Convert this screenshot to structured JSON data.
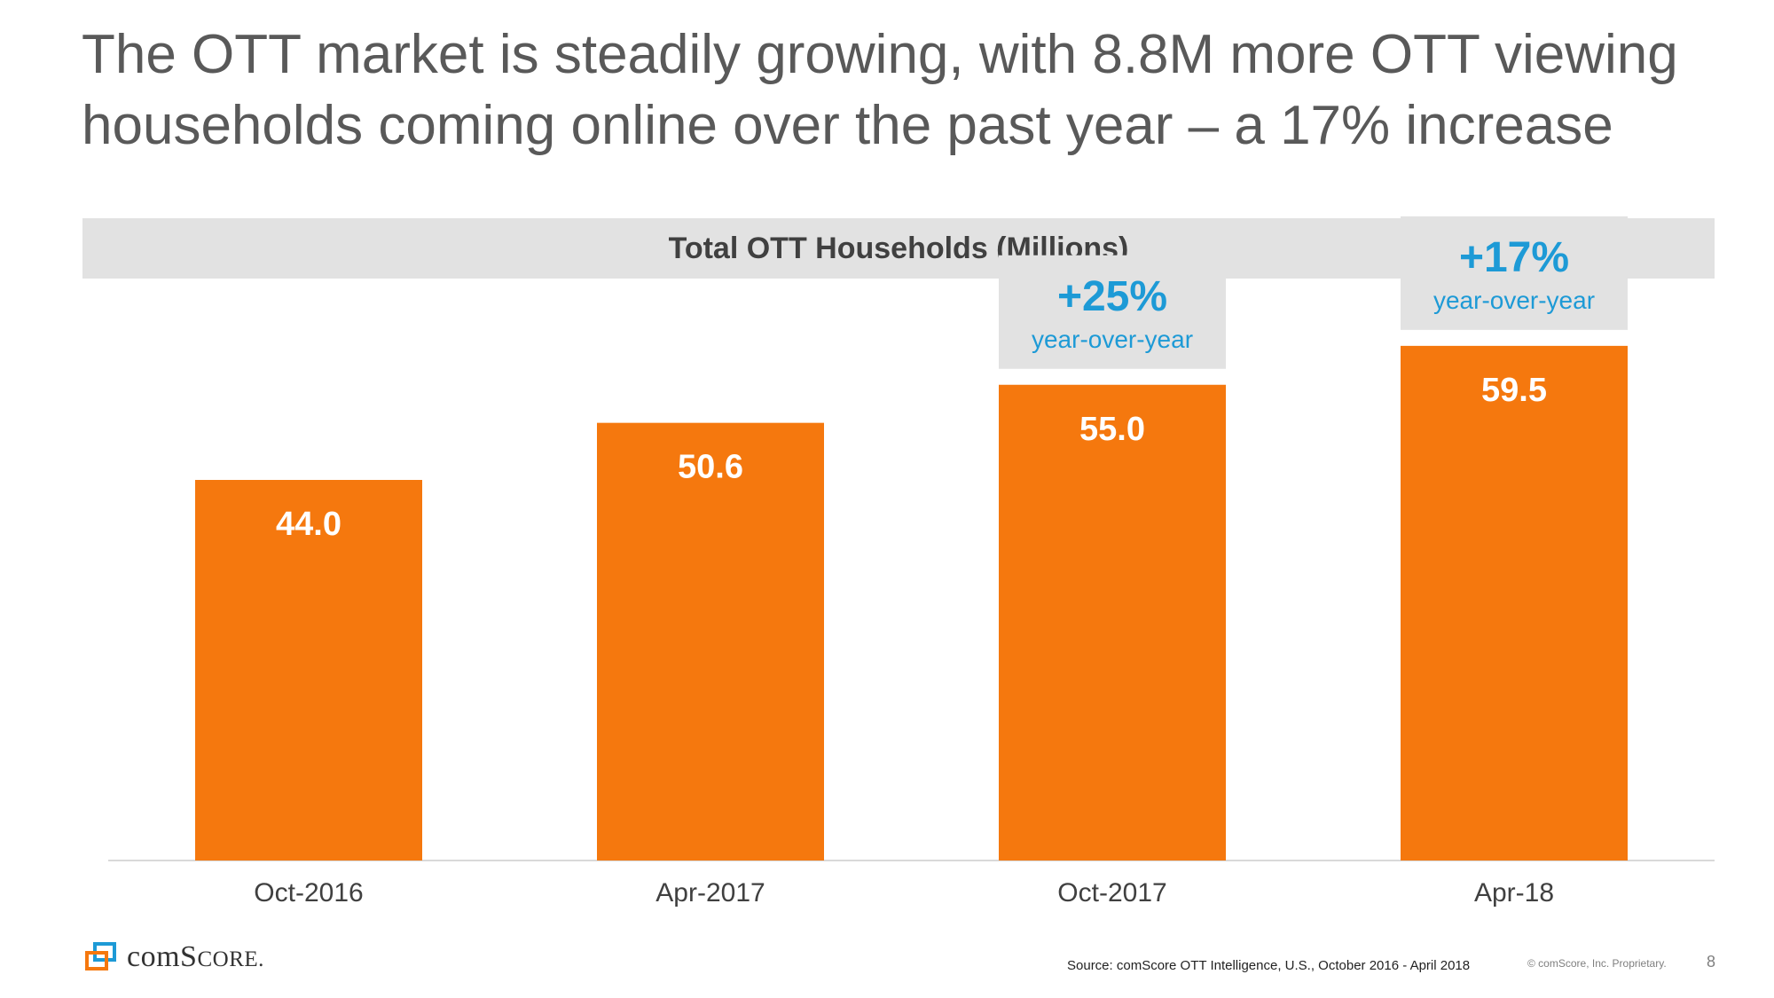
{
  "slide": {
    "title": "The OTT market is steadily growing, with 8.8M more OTT viewing households coming online over the past year – a 17% increase"
  },
  "chart_data": {
    "type": "bar",
    "title": "Total OTT Households (Millions)",
    "categories": [
      "Oct-2016",
      "Apr-2017",
      "Oct-2017",
      "Apr-18"
    ],
    "values": [
      44.0,
      50.6,
      55.0,
      59.5
    ],
    "value_labels": [
      "44.0",
      "50.6",
      "55.0",
      "59.5"
    ],
    "ylim": [
      0,
      80
    ],
    "xlabel": "",
    "ylabel": "",
    "grid": false,
    "legend": "none",
    "annotations": [
      {
        "category": "Oct-2017",
        "value": "+25%",
        "text": "year-over-year"
      },
      {
        "category": "Apr-18",
        "value": "+17%",
        "text": "year-over-year"
      }
    ]
  },
  "colors": {
    "bar": "#f5780e",
    "bar_label": "#ffffff",
    "annotation_box": "#e2e2e2",
    "annotation_text": "#1d9ad6",
    "axis": "#d9d9d9",
    "tick_label": "#404040"
  },
  "footer": {
    "logo_text_prefix": "com",
    "logo_text_s": "S",
    "logo_text_core": "CORE",
    "logo_text_suffix": ".",
    "source": "Source: comScore OTT Intelligence, U.S., October 2016 - April 2018",
    "copyright": "© comScore, Inc. Proprietary.",
    "page_number": "8"
  }
}
